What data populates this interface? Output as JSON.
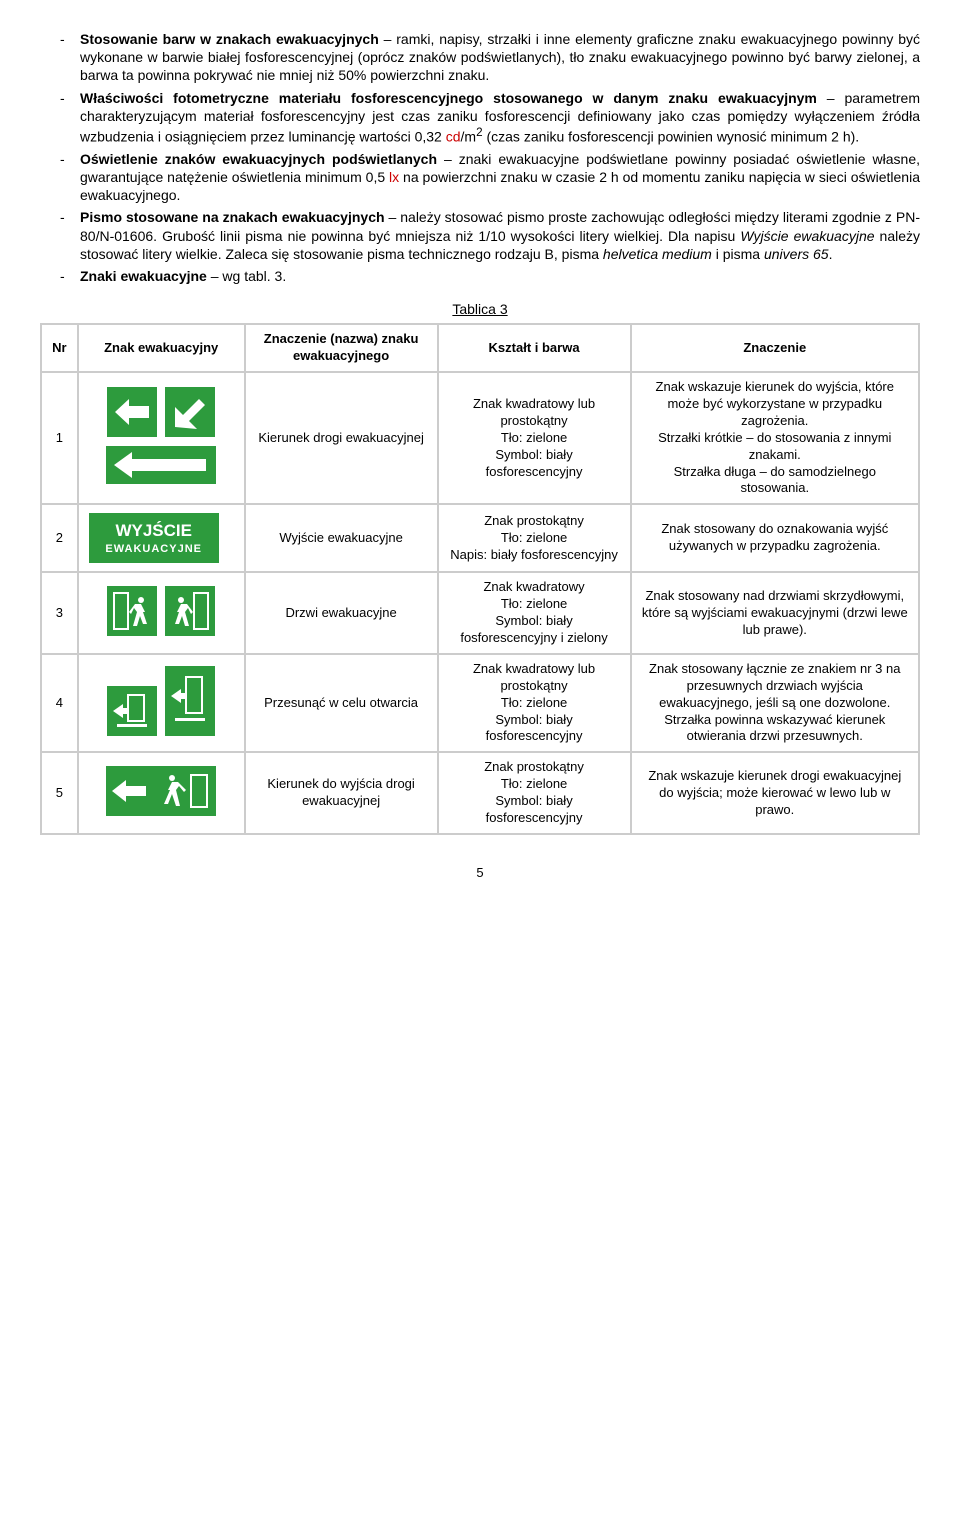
{
  "bullets": [
    {
      "title": "Stosowanie barw w znakach ewakuacyjnych",
      "body": " – ramki, napisy, strzałki i inne elementy graficzne znaku ewakuacyjnego powinny być wykonane w barwie białej fosforescencyjnej (oprócz znaków podświetlanych), tło znaku ewakuacyjnego powinno być barwy zielonej, a barwa ta powinna pokrywać nie mniej niż 50% powierzchni znaku."
    },
    {
      "title": "Właściwości fotometryczne materiału fosforescencyjnego stosowanego w danym znaku ewakuacyjnym",
      "body_parts": [
        " – parametrem charakteryzującym materiał fosforescencyjny jest czas zaniku fosforescencji definiowany jako czas pomiędzy wyłączeniem źródła wzbudzenia i osiągnięciem przez luminancję wartości 0,32 ",
        "cd",
        "/m",
        "2",
        " (czas zaniku fosforescencji powinien wynosić minimum 2 h)."
      ]
    },
    {
      "title": "Oświetlenie znaków ewakuacyjnych podświetlanych",
      "body_parts": [
        " – znaki ewakuacyjne podświetlane powinny posiadać oświetlenie własne, gwarantujące natężenie oświetlenia minimum 0,5 ",
        "lx",
        " na powierzchni znaku w czasie 2 h od momentu zaniku napięcia w sieci oświetlenia ewakuacyjnego."
      ]
    },
    {
      "title": "Pismo stosowane na znakach ewakuacyjnych",
      "body_parts": [
        " – należy stosować pismo proste zachowując odległości między literami zgodnie z PN-80/N-01606. Grubość linii pisma nie powinna być mniejsza niż 1/10 wysokości litery wielkiej. Dla napisu ",
        "Wyjście ewakuacyjne",
        " należy stosować litery wielkie. Zaleca się stosowanie pisma technicznego rodzaju B, pisma ",
        "helvetica medium",
        " i pisma ",
        "univers 65",
        "."
      ]
    },
    {
      "title": "Znaki ewakuacyjne",
      "body": " – wg tabl. 3."
    }
  ],
  "table_caption": "Tablica 3",
  "headers": {
    "nr": "Nr",
    "sign": "Znak ewakuacyjny",
    "name": "Znaczenie (nazwa) znaku ewakuacyjnego",
    "shape": "Kształt i barwa",
    "meaning": "Znaczenie"
  },
  "rows": [
    {
      "nr": "1",
      "name": "Kierunek drogi ewakuacyjnej",
      "shape": "Znak kwadratowy lub prostokątny\nTło: zielone\nSymbol: biały fosforescencyjny",
      "meaning": "Znak wskazuje kierunek do wyjścia, które może być wykorzystane w przypadku zagrożenia.\nStrzałki krótkie – do stosowania z innymi znakami.\nStrzałka długa – do samodzielnego stosowania."
    },
    {
      "nr": "2",
      "name": "Wyjście ewakuacyjne",
      "shape": "Znak prostokątny\nTło: zielone\nNapis: biały fosforescencyjny",
      "meaning": "Znak stosowany do oznakowania wyjść używanych w przypadku zagrożenia."
    },
    {
      "nr": "3",
      "name": "Drzwi ewakuacyjne",
      "shape": "Znak kwadratowy\nTło: zielone\nSymbol: biały fosforescencyjny i zielony",
      "meaning": "Znak stosowany nad drzwiami skrzydłowymi, które są wyjściami ewakuacyjnymi (drzwi lewe lub prawe)."
    },
    {
      "nr": "4",
      "name": "Przesunąć w celu otwarcia",
      "shape": "Znak kwadratowy lub prostokątny\nTło: zielone\nSymbol: biały fosforescencyjny",
      "meaning": "Znak stosowany łącznie ze znakiem nr 3 na przesuwnych drzwiach wyjścia ewakuacyjnego, jeśli są one dozwolone.\nStrzałka powinna wskazywać kierunek otwierania drzwi przesuwnych."
    },
    {
      "nr": "5",
      "name": "Kierunek do wyjścia drogi ewakuacyjnej",
      "shape": "Znak prostokątny\nTło: zielone\nSymbol: biały fosforescencyjny",
      "meaning": "Znak wskazuje kierunek drogi ewakuacyjnej do wyjścia; może kierować w lewo lub w prawo."
    }
  ],
  "sign_texts": {
    "wyjscie": "WYJŚCIE",
    "ewakuacyjne": "EWAKUACYJNE"
  },
  "colors": {
    "sign_green": "#2d9b3d",
    "sign_white": "#ffffff",
    "border_grey": "#cccccc",
    "text_red": "#cc0000"
  },
  "page_number": "5"
}
